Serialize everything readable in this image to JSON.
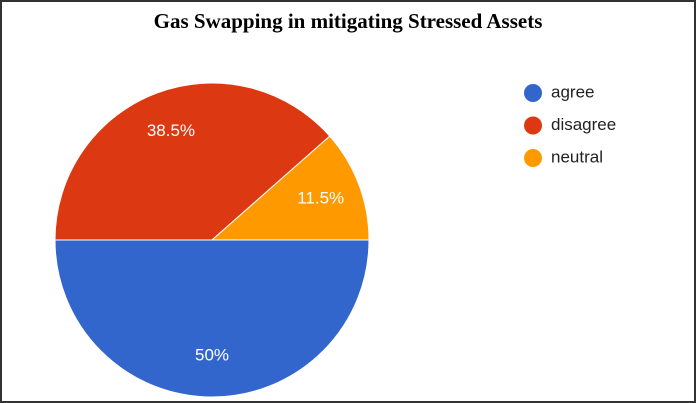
{
  "chart_data": {
    "type": "pie",
    "title": "Gas Swapping in mitigating Stressed Assets",
    "categories": [
      "agree",
      "disagree",
      "neutral"
    ],
    "values": [
      50,
      38.5,
      11.5
    ],
    "value_labels": [
      "50%",
      "38.5%",
      "11.5%"
    ],
    "colors": [
      "#3366cc",
      "#dc3912",
      "#ff9900"
    ],
    "legend": "right"
  }
}
